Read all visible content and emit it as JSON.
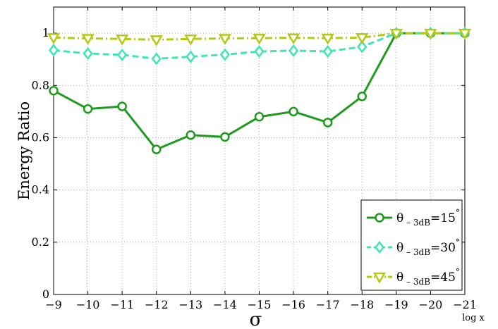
{
  "chart_data": {
    "type": "line",
    "x": [
      -9,
      -10,
      -11,
      -12,
      -13,
      -14,
      -15,
      -16,
      -17,
      -18,
      -19,
      -20,
      -21
    ],
    "series": [
      {
        "name": "θ – 3dB=15°",
        "label": {
          "main": "θ",
          "sub": "– 3dB",
          "eq": "=15",
          "sup": "°"
        },
        "values": [
          0.78,
          0.71,
          0.72,
          0.555,
          0.61,
          0.603,
          0.68,
          0.7,
          0.658,
          0.758,
          1.0,
          1.0,
          1.0
        ],
        "color": "#1e9b1e",
        "dash": "solid",
        "marker": "circle"
      },
      {
        "name": "θ – 3dB=30°",
        "label": {
          "main": "θ",
          "sub": "– 3dB",
          "eq": "=30",
          "sup": "°"
        },
        "values": [
          0.935,
          0.922,
          0.917,
          0.902,
          0.91,
          0.918,
          0.93,
          0.933,
          0.93,
          0.948,
          1.0,
          1.0,
          1.0
        ],
        "color": "#3ee6b4",
        "dash": "dashed",
        "marker": "diamond"
      },
      {
        "name": "θ – 3dB=45°",
        "label": {
          "main": "θ",
          "sub": "– 3dB",
          "eq": "=45",
          "sup": "°"
        },
        "values": [
          0.983,
          0.98,
          0.978,
          0.975,
          0.978,
          0.98,
          0.981,
          0.982,
          0.981,
          0.983,
          1.0,
          1.0,
          1.0
        ],
        "color": "#b4c814",
        "dash": "dashdot",
        "marker": "triangle-down"
      }
    ],
    "xlabel": "σ",
    "x_note": "log x",
    "ylabel": "Energy Ratio",
    "xlim": [
      -9,
      -21
    ],
    "ylim": [
      0,
      1.1
    ],
    "xticks": [
      "−9",
      "−10",
      "−11",
      "−12",
      "−13",
      "−14",
      "−15",
      "−16",
      "−17",
      "−18",
      "−19",
      "−20",
      "−21"
    ],
    "yticks": [
      0,
      0.2,
      0.4,
      0.6,
      0.8,
      1
    ],
    "ytick_labels": [
      "0",
      "0.2",
      "0.4",
      "0.6",
      "0.8",
      "1"
    ],
    "grid": true,
    "legend_position": "bottom-right"
  }
}
